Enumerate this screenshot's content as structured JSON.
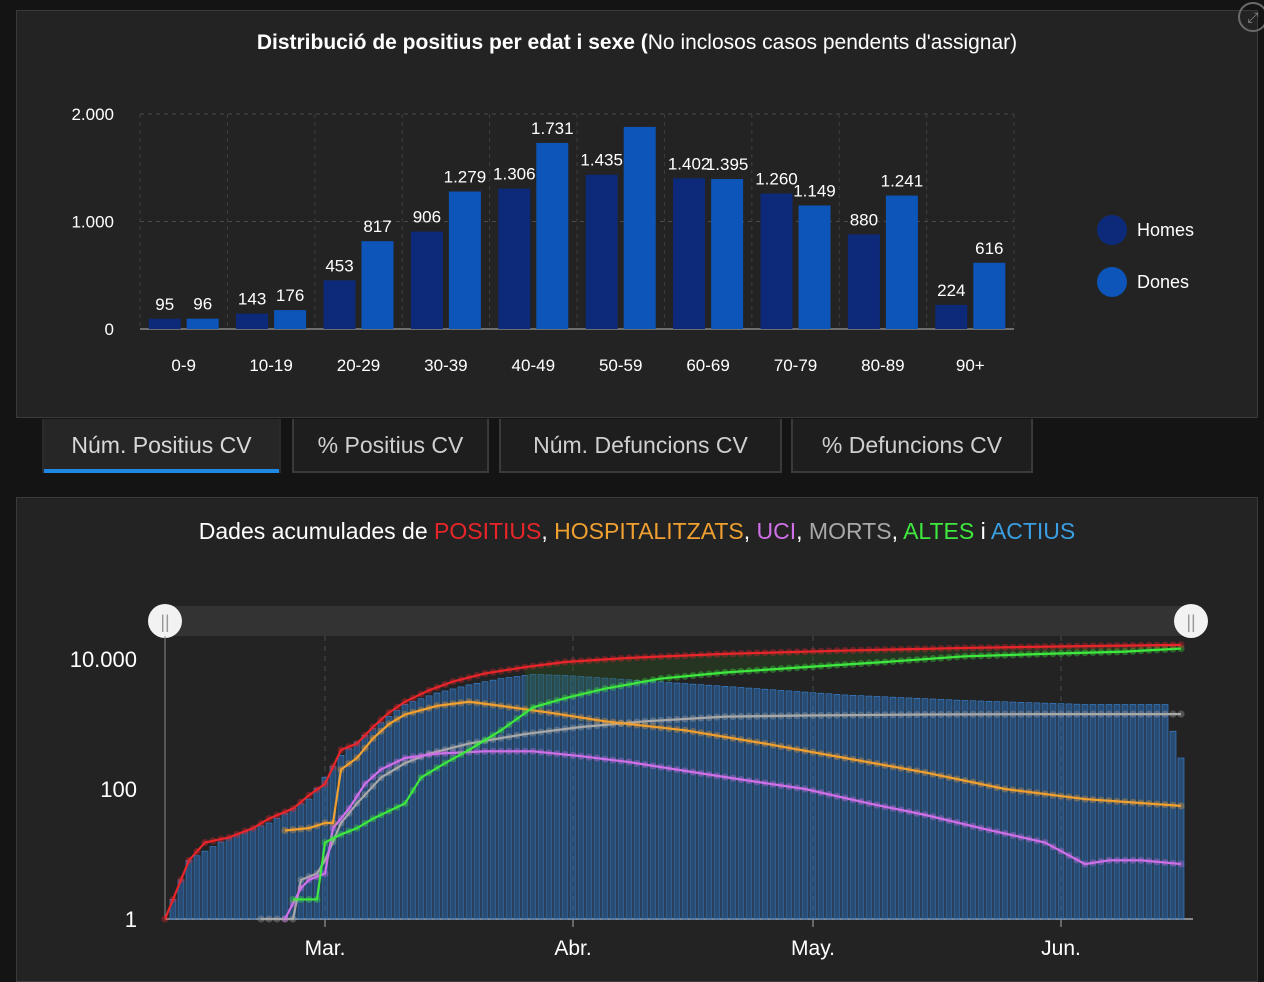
{
  "chart1": {
    "title_bold": "Distribució de positius per edat i sexe (",
    "title_rest": "No inclosos casos pendents d'assignar)"
  },
  "legend": {
    "homes": {
      "label": "Homes",
      "color": "#0d2a7a"
    },
    "dones": {
      "label": "Dones",
      "color": "#0d55b8"
    }
  },
  "tabs": [
    {
      "label": "Núm. Positius CV",
      "active": true
    },
    {
      "label": "% Positius CV",
      "active": false
    },
    {
      "label": "Núm. Defuncions CV",
      "active": false
    },
    {
      "label": "% Defuncions CV",
      "active": false
    }
  ],
  "chart2": {
    "title_prefix": "Dades acumulades de ",
    "positius": "POSITIUS",
    "hospitalitzats": "HOSPITALITZATS",
    "uci": "UCI",
    "morts": "MORTS",
    "altes": "ALTES",
    "actius": "ACTIUS",
    "sep_comma": ",",
    "sep_i": "i",
    "colors": {
      "positius": "#e8262a",
      "hospitalitzats": "#f0a030",
      "uci": "#d070e8",
      "morts": "#a8a8a8",
      "altes": "#3ee83e",
      "actius": "#3a9ee0"
    }
  },
  "chart_data": [
    {
      "type": "bar",
      "title": "Distribució de positius per edat i sexe (No inclosos casos pendents d'assignar)",
      "categories": [
        "0-9",
        "10-19",
        "20-29",
        "30-39",
        "40-49",
        "50-59",
        "60-69",
        "70-79",
        "80-89",
        "90+"
      ],
      "series": [
        {
          "name": "Homes",
          "values": [
            95,
            143,
            453,
            906,
            1306,
            1435,
            1402,
            1260,
            880,
            224
          ],
          "labels": [
            "95",
            "143",
            "453",
            "906",
            "1.306",
            "1.435",
            "1.402",
            "1.260",
            "880",
            "224"
          ]
        },
        {
          "name": "Dones",
          "values": [
            96,
            176,
            817,
            1279,
            1731,
            1880,
            1395,
            1149,
            1241,
            616
          ],
          "labels": [
            "96",
            "176",
            "817",
            "1.279",
            "1.731",
            "",
            "1.395",
            "1.149",
            "1.241",
            "616"
          ]
        }
      ],
      "ylim": [
        0,
        2000
      ],
      "yticks": [
        {
          "v": 0,
          "label": "0"
        },
        {
          "v": 1000,
          "label": "1.000"
        },
        {
          "v": 2000,
          "label": "2.000"
        }
      ],
      "legend": "right",
      "grid": true
    },
    {
      "type": "line",
      "title": "Dades acumulades de POSITIUS, HOSPITALITZATS, UCI, MORTS, ALTES i ACTIUS",
      "yscale": "log",
      "yticks": [
        {
          "v": 1,
          "label": "1"
        },
        {
          "v": 100,
          "label": "100"
        },
        {
          "v": 10000,
          "label": "10.000"
        }
      ],
      "ylim": [
        1,
        30000
      ],
      "xticks": [
        {
          "day": 20,
          "label": "Mar."
        },
        {
          "day": 51,
          "label": "Abr."
        },
        {
          "day": 81,
          "label": "May."
        },
        {
          "day": 112,
          "label": "Jun."
        }
      ],
      "xlim": [
        0,
        128
      ],
      "series": [
        {
          "name": "POSITIUS",
          "color": "#e8262a",
          "points": [
            [
              0,
              1
            ],
            [
              3,
              8
            ],
            [
              5,
              15
            ],
            [
              8,
              18
            ],
            [
              11,
              25
            ],
            [
              13,
              35
            ],
            [
              16,
              50
            ],
            [
              18,
              80
            ],
            [
              20,
              120
            ],
            [
              22,
              400
            ],
            [
              24,
              500
            ],
            [
              26,
              900
            ],
            [
              28,
              1500
            ],
            [
              30,
              2200
            ],
            [
              33,
              3300
            ],
            [
              36,
              4500
            ],
            [
              40,
              6000
            ],
            [
              45,
              7500
            ],
            [
              50,
              9000
            ],
            [
              58,
              10400
            ],
            [
              70,
              12000
            ],
            [
              85,
              13500
            ],
            [
              100,
              14800
            ],
            [
              115,
              15800
            ],
            [
              127,
              16500
            ]
          ]
        },
        {
          "name": "HOSPITALITZATS",
          "color": "#f0a030",
          "points": [
            [
              15,
              23
            ],
            [
              18,
              25
            ],
            [
              20,
              30
            ],
            [
              21,
              30
            ],
            [
              22,
              200
            ],
            [
              24,
              300
            ],
            [
              26,
              600
            ],
            [
              28,
              1000
            ],
            [
              30,
              1400
            ],
            [
              34,
              1900
            ],
            [
              38,
              2200
            ],
            [
              42,
              1900
            ],
            [
              48,
              1500
            ],
            [
              55,
              1100
            ],
            [
              65,
              800
            ],
            [
              75,
              500
            ],
            [
              85,
              300
            ],
            [
              95,
              180
            ],
            [
              105,
              100
            ],
            [
              115,
              70
            ],
            [
              127,
              55
            ]
          ]
        },
        {
          "name": "UCI",
          "color": "#d070e8",
          "points": [
            [
              15,
              1
            ],
            [
              17,
              3
            ],
            [
              18,
              4
            ],
            [
              20,
              5
            ],
            [
              21,
              25
            ],
            [
              23,
              50
            ],
            [
              25,
              120
            ],
            [
              27,
              200
            ],
            [
              30,
              300
            ],
            [
              34,
              350
            ],
            [
              40,
              380
            ],
            [
              46,
              380
            ],
            [
              52,
              320
            ],
            [
              58,
              260
            ],
            [
              65,
              190
            ],
            [
              72,
              140
            ],
            [
              80,
              100
            ],
            [
              88,
              60
            ],
            [
              95,
              40
            ],
            [
              102,
              25
            ],
            [
              110,
              15
            ],
            [
              115,
              7
            ],
            [
              118,
              8
            ],
            [
              122,
              8
            ],
            [
              127,
              7
            ]
          ]
        },
        {
          "name": "MORTS",
          "color": "#a8a8a8",
          "points": [
            [
              12,
              1
            ],
            [
              16,
              1
            ],
            [
              17,
              4
            ],
            [
              19,
              5
            ],
            [
              20,
              8
            ],
            [
              22,
              30
            ],
            [
              24,
              60
            ],
            [
              27,
              150
            ],
            [
              30,
              250
            ],
            [
              33,
              350
            ],
            [
              38,
              500
            ],
            [
              45,
              700
            ],
            [
              52,
              900
            ],
            [
              60,
              1100
            ],
            [
              70,
              1300
            ],
            [
              80,
              1350
            ],
            [
              95,
              1400
            ],
            [
              110,
              1420
            ],
            [
              127,
              1420
            ]
          ]
        },
        {
          "name": "ALTES",
          "color": "#3ee83e",
          "points": [
            [
              16,
              2
            ],
            [
              19,
              2
            ],
            [
              20,
              15
            ],
            [
              22,
              20
            ],
            [
              24,
              25
            ],
            [
              26,
              35
            ],
            [
              30,
              60
            ],
            [
              32,
              150
            ],
            [
              35,
              250
            ],
            [
              38,
              400
            ],
            [
              42,
              800
            ],
            [
              46,
              1800
            ],
            [
              50,
              2500
            ],
            [
              55,
              3500
            ],
            [
              62,
              5000
            ],
            [
              70,
              6200
            ],
            [
              80,
              7500
            ],
            [
              90,
              9000
            ],
            [
              100,
              11000
            ],
            [
              110,
              12000
            ],
            [
              120,
              13000
            ],
            [
              127,
              14500
            ]
          ]
        },
        {
          "name": "ACTIUS",
          "color": "#3a9ee0",
          "points": [
            [
              0,
              1
            ],
            [
              3,
              8
            ],
            [
              8,
              18
            ],
            [
              13,
              30
            ],
            [
              18,
              70
            ],
            [
              22,
              330
            ],
            [
              26,
              850
            ],
            [
              30,
              2000
            ],
            [
              34,
              3000
            ],
            [
              38,
              4000
            ],
            [
              42,
              5000
            ],
            [
              46,
              5800
            ],
            [
              50,
              5600
            ],
            [
              58,
              4800
            ],
            [
              70,
              3800
            ],
            [
              85,
              2800
            ],
            [
              100,
              2300
            ],
            [
              115,
              2000
            ],
            [
              125,
              2000
            ],
            [
              127,
              300
            ]
          ]
        }
      ]
    }
  ]
}
